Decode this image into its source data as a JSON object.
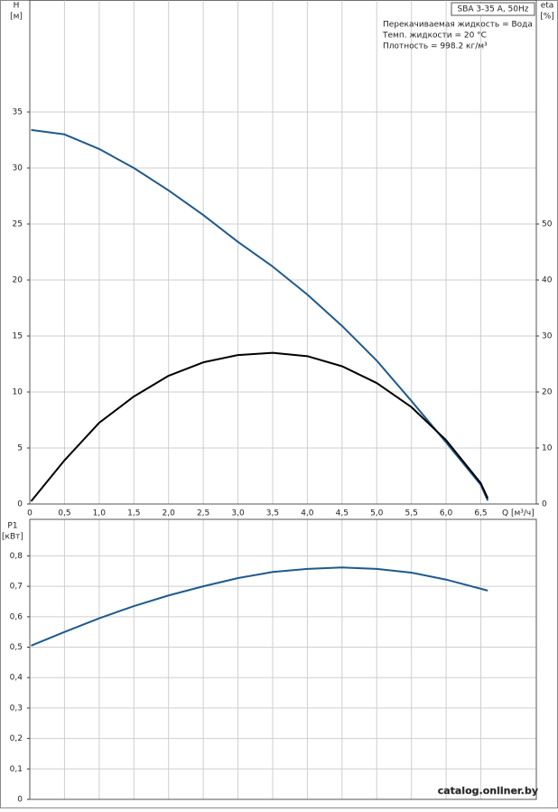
{
  "chart_data": [
    {
      "type": "line",
      "title": "SBA 3-35 A, 50Hz",
      "notes": [
        "Перекачиваемая жидкость = Вода",
        "Темп. жидкости = 20 °C",
        "Плотность = 998.2 кг/м³"
      ],
      "y_label": [
        "H",
        "[м]"
      ],
      "y2_label": [
        "eta",
        "[%]"
      ],
      "x_label": "Q [м³/ч]",
      "xlim": [
        0,
        7.3
      ],
      "xticks": [
        0,
        {
          "value": 0.5,
          "label": "0,5"
        },
        {
          "value": 1,
          "label": "1,0"
        },
        {
          "value": 1.5,
          "label": "1,5"
        },
        {
          "value": 2,
          "label": "2,0"
        },
        {
          "value": 2.5,
          "label": "2,5"
        },
        {
          "value": 3,
          "label": "3,0"
        },
        {
          "value": 3.5,
          "label": "3,5"
        },
        {
          "value": 4,
          "label": "4,0"
        },
        {
          "value": 4.5,
          "label": "4,5"
        },
        {
          "value": 5,
          "label": "5,0"
        },
        {
          "value": 5.5,
          "label": "5,5"
        },
        {
          "value": 6,
          "label": "6,0"
        },
        {
          "value": 6.5,
          "label": "6,5"
        }
      ],
      "ylim": [
        0,
        45
      ],
      "yticks": [
        0,
        5,
        10,
        15,
        20,
        25,
        30,
        35
      ],
      "y2lim": [
        0,
        90
      ],
      "y2ticks": [
        0,
        10,
        20,
        30,
        40,
        50
      ],
      "x": [
        0.02,
        0.5,
        1,
        1.5,
        2,
        2.5,
        3,
        3.5,
        4,
        4.5,
        5,
        5.5,
        6,
        6.5,
        6.6
      ],
      "series": [
        {
          "name": "H",
          "color": "#1f5a8c",
          "values": [
            33.4,
            33,
            31.7,
            30,
            28,
            25.8,
            23.4,
            21.2,
            18.7,
            15.9,
            12.8,
            9.2,
            5.5,
            1.7,
            0.3
          ]
        },
        {
          "name": "eta",
          "color": "#000000",
          "axis": "y2",
          "values": [
            0.5,
            7.8,
            14.5,
            19.2,
            22.9,
            25.3,
            26.6,
            27,
            26.4,
            24.6,
            21.6,
            17.3,
            11.4,
            3.7,
            1
          ]
        }
      ],
      "grid": true
    },
    {
      "type": "line",
      "y_label": [
        "P1",
        "[кВт]"
      ],
      "xlim": [
        0,
        7.3
      ],
      "ylim": [
        0,
        0.92
      ],
      "yticks": [
        0,
        {
          "value": 0.1,
          "label": "0,1"
        },
        {
          "value": 0.2,
          "label": "0,2"
        },
        {
          "value": 0.3,
          "label": "0,3"
        },
        {
          "value": 0.4,
          "label": "0,4"
        },
        {
          "value": 0.5,
          "label": "0,5"
        },
        {
          "value": 0.6,
          "label": "0,6"
        },
        {
          "value": 0.7,
          "label": "0,7"
        },
        {
          "value": 0.8,
          "label": "0,8"
        }
      ],
      "x": [
        0.02,
        0.5,
        1,
        1.5,
        2,
        2.5,
        3,
        3.5,
        4,
        4.5,
        5,
        5.5,
        6,
        6.6
      ],
      "series": [
        {
          "name": "P1",
          "color": "#1f5a8c",
          "values": [
            0.505,
            0.55,
            0.595,
            0.635,
            0.67,
            0.7,
            0.727,
            0.747,
            0.757,
            0.762,
            0.757,
            0.745,
            0.722,
            0.686
          ]
        }
      ],
      "grid": true
    },
    {
      "type": "watermark",
      "text": "catalog.onliner.by"
    }
  ]
}
